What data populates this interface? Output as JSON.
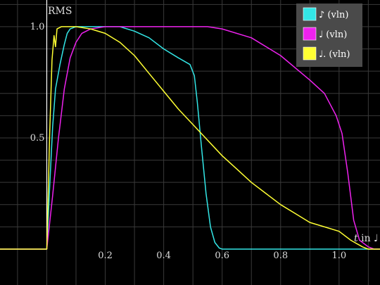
{
  "chart_data": {
    "type": "line",
    "ylabel": "RMS",
    "xlabel_italic": "t",
    "xlabel_rest": " in ♩",
    "xlim": [
      -0.16,
      1.14
    ],
    "ylim": [
      0,
      1.12
    ],
    "grid": true,
    "legend_position": "top-right",
    "x_ticks": [
      {
        "value": 0.2,
        "label": "0.2"
      },
      {
        "value": 0.4,
        "label": "0.4"
      },
      {
        "value": 0.6,
        "label": "0.6"
      },
      {
        "value": 0.8,
        "label": "0.8"
      },
      {
        "value": 1.0,
        "label": "1.0"
      }
    ],
    "y_ticks": [
      {
        "value": 0.5,
        "label": "0.5"
      },
      {
        "value": 1.0,
        "label": "1.0"
      }
    ],
    "series": [
      {
        "name": "♪ (vln)",
        "color": "#33e6e6",
        "points": [
          [
            -0.16,
            0
          ],
          [
            0,
            0
          ],
          [
            0.01,
            0.28
          ],
          [
            0.02,
            0.55
          ],
          [
            0.03,
            0.72
          ],
          [
            0.045,
            0.83
          ],
          [
            0.06,
            0.92
          ],
          [
            0.07,
            0.97
          ],
          [
            0.08,
            0.99
          ],
          [
            0.1,
            1.0
          ],
          [
            0.25,
            1.0
          ],
          [
            0.3,
            0.98
          ],
          [
            0.35,
            0.95
          ],
          [
            0.4,
            0.9
          ],
          [
            0.45,
            0.86
          ],
          [
            0.49,
            0.83
          ],
          [
            0.505,
            0.78
          ],
          [
            0.515,
            0.66
          ],
          [
            0.53,
            0.45
          ],
          [
            0.545,
            0.25
          ],
          [
            0.56,
            0.1
          ],
          [
            0.575,
            0.03
          ],
          [
            0.59,
            0.005
          ],
          [
            0.6,
            0
          ],
          [
            1.14,
            0
          ]
        ]
      },
      {
        "name": "♩ (vln)",
        "color": "#ee22ee",
        "points": [
          [
            -0.16,
            0
          ],
          [
            0,
            0
          ],
          [
            0.02,
            0.24
          ],
          [
            0.04,
            0.5
          ],
          [
            0.06,
            0.72
          ],
          [
            0.08,
            0.86
          ],
          [
            0.1,
            0.93
          ],
          [
            0.12,
            0.97
          ],
          [
            0.15,
            0.99
          ],
          [
            0.2,
            1.0
          ],
          [
            0.55,
            1.0
          ],
          [
            0.6,
            0.99
          ],
          [
            0.7,
            0.95
          ],
          [
            0.8,
            0.87
          ],
          [
            0.9,
            0.76
          ],
          [
            0.95,
            0.7
          ],
          [
            0.99,
            0.6
          ],
          [
            1.01,
            0.52
          ],
          [
            1.03,
            0.34
          ],
          [
            1.05,
            0.13
          ],
          [
            1.07,
            0.04
          ],
          [
            1.1,
            0.01
          ],
          [
            1.12,
            0
          ],
          [
            1.14,
            0
          ]
        ]
      },
      {
        "name": "♩. (vln)",
        "color": "#ffff33",
        "points": [
          [
            -0.16,
            0
          ],
          [
            0,
            0
          ],
          [
            0.01,
            0.52
          ],
          [
            0.018,
            0.85
          ],
          [
            0.025,
            0.96
          ],
          [
            0.03,
            0.91
          ],
          [
            0.035,
            0.99
          ],
          [
            0.05,
            1.0
          ],
          [
            0.1,
            1.0
          ],
          [
            0.15,
            0.99
          ],
          [
            0.2,
            0.97
          ],
          [
            0.25,
            0.93
          ],
          [
            0.3,
            0.87
          ],
          [
            0.35,
            0.79
          ],
          [
            0.4,
            0.71
          ],
          [
            0.45,
            0.63
          ],
          [
            0.5,
            0.56
          ],
          [
            0.55,
            0.49
          ],
          [
            0.6,
            0.42
          ],
          [
            0.65,
            0.36
          ],
          [
            0.7,
            0.3
          ],
          [
            0.75,
            0.25
          ],
          [
            0.8,
            0.2
          ],
          [
            0.85,
            0.16
          ],
          [
            0.9,
            0.12
          ],
          [
            0.95,
            0.1
          ],
          [
            1.0,
            0.08
          ],
          [
            1.04,
            0.04
          ],
          [
            1.08,
            0.01
          ],
          [
            1.1,
            0
          ],
          [
            1.14,
            0
          ]
        ]
      }
    ]
  }
}
